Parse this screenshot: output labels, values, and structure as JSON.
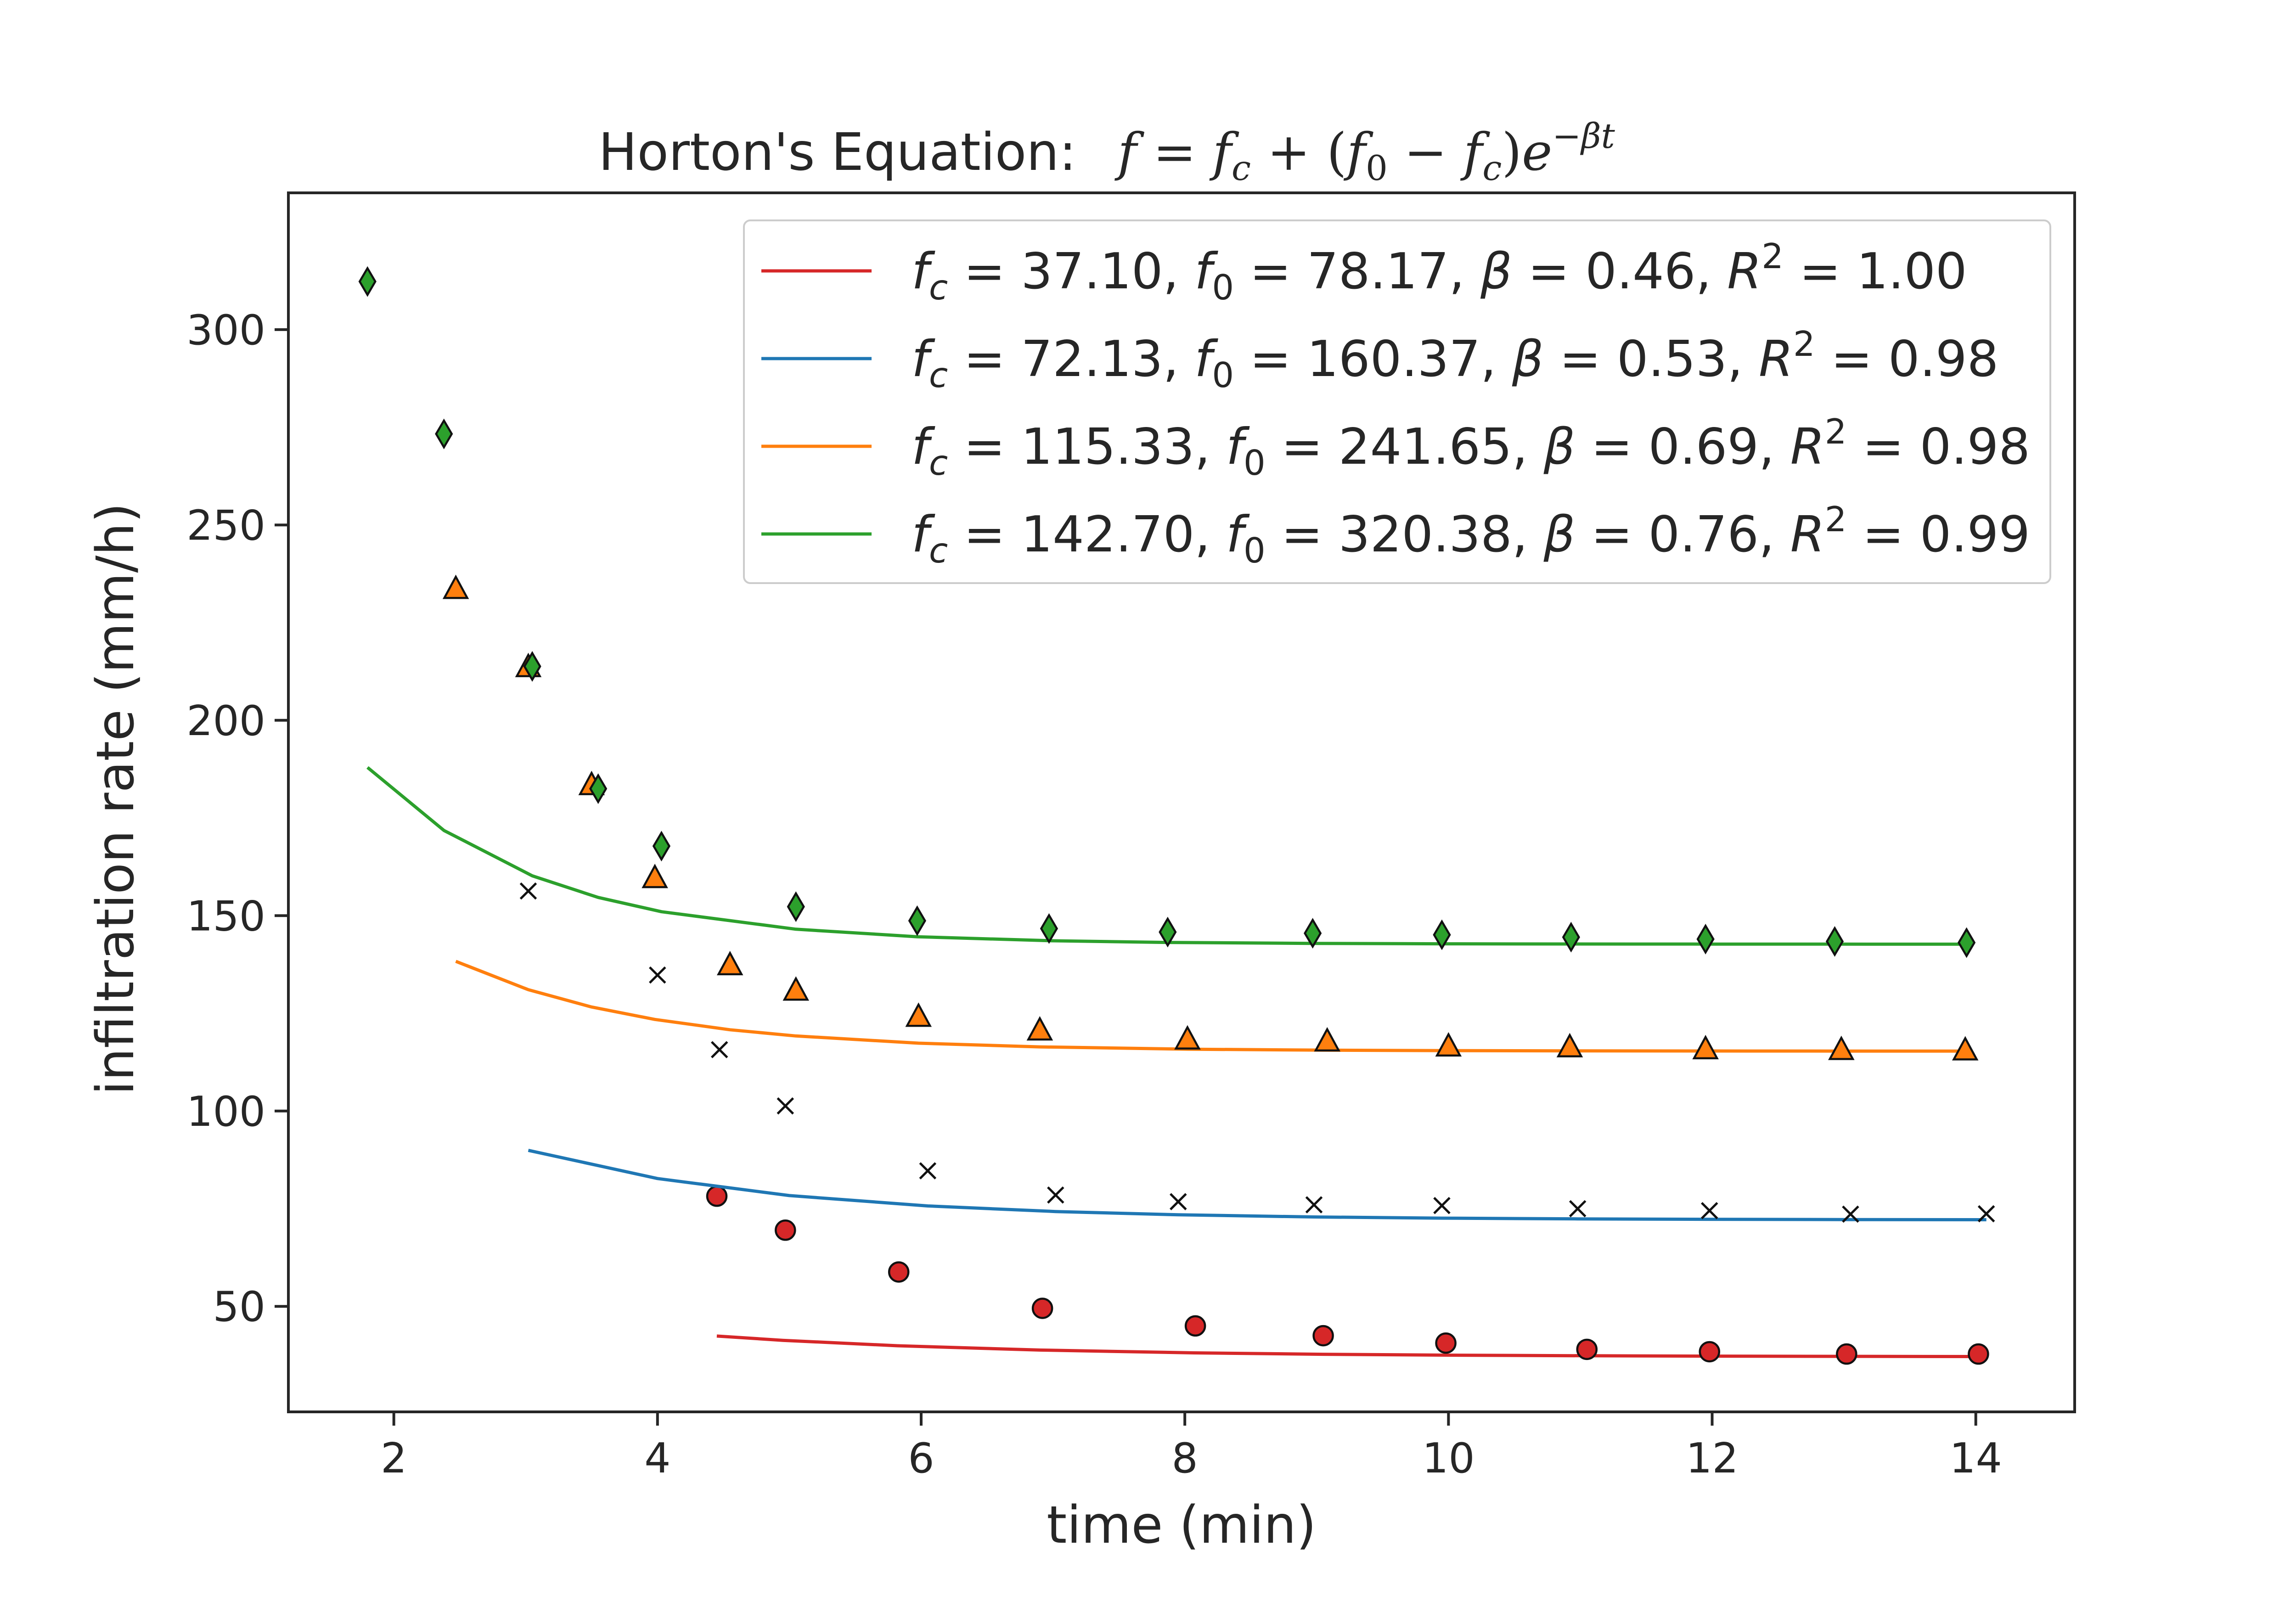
{
  "chart_data": {
    "type": "line",
    "title": "Horton's Equation:",
    "title_equation": "f = f_c + (f_0 − f_c)e^(−βt)",
    "xlabel": "time (min)",
    "ylabel": "infiltration rate (mm/h)",
    "xlim": [
      1.2,
      14.75
    ],
    "ylim": [
      23,
      335
    ],
    "xticks": [
      2,
      4,
      6,
      8,
      10,
      12,
      14
    ],
    "yticks": [
      50,
      100,
      150,
      200,
      250,
      300
    ],
    "grid": false,
    "legend_position": "top-right",
    "series": [
      {
        "legend_label": "f_c = 37.10, f_0 = 78.17, β = 0.46, R^2 = 1.00",
        "params": {
          "fc": 37.1,
          "f0": 78.17,
          "beta": 0.46,
          "r2": 1.0
        },
        "color": "#d62728",
        "marker": "circle",
        "curve_t": [
          4.45,
          4.95,
          5.82,
          6.9,
          8.07,
          9.05,
          10.0,
          11.05,
          12.0,
          13.02,
          14.02
        ],
        "observed": {
          "t": [
            4.45,
            4.97,
            5.83,
            6.92,
            8.08,
            9.05,
            9.98,
            11.05,
            11.98,
            13.02,
            14.02
          ],
          "f": [
            78.2,
            69.5,
            58.8,
            49.5,
            45.0,
            42.5,
            40.6,
            39.0,
            38.4,
            37.8,
            37.8
          ]
        }
      },
      {
        "legend_label": "f_c = 72.13, f_0 = 160.37, β = 0.53, R^2 = 0.98",
        "params": {
          "fc": 72.13,
          "f0": 160.37,
          "beta": 0.53,
          "r2": 0.98
        },
        "color": "#1f77b4",
        "marker": "x",
        "curve_t": [
          3.02,
          4.0,
          5.0,
          6.05,
          7.02,
          7.95,
          8.98,
          9.95,
          10.98,
          11.98,
          13.05,
          14.08
        ],
        "observed": {
          "t": [
            3.02,
            4.0,
            4.47,
            4.97,
            6.05,
            7.02,
            7.95,
            8.98,
            9.95,
            10.98,
            11.98,
            13.05,
            14.08
          ],
          "f": [
            156.3,
            134.8,
            115.7,
            101.3,
            84.7,
            78.5,
            76.8,
            76.0,
            75.8,
            75.0,
            74.5,
            73.6,
            73.7
          ]
        }
      },
      {
        "legend_label": "f_c = 115.33, f_0 = 241.65, β = 0.69, R^2 = 0.98",
        "params": {
          "fc": 115.33,
          "f0": 241.65,
          "beta": 0.69,
          "r2": 0.98
        },
        "color": "#ff7f0e",
        "marker": "triangle",
        "curve_t": [
          2.47,
          3.02,
          3.5,
          3.98,
          4.55,
          5.05,
          5.98,
          6.9,
          8.02,
          9.08,
          10.0,
          10.92,
          11.95,
          12.98,
          13.92
        ],
        "observed": {
          "t": [
            2.47,
            3.02,
            3.5,
            3.98,
            4.55,
            5.05,
            5.98,
            6.9,
            8.02,
            9.08,
            10.0,
            10.92,
            11.95,
            12.98,
            13.92
          ],
          "f": [
            233.8,
            213.8,
            183.6,
            159.8,
            137.5,
            131.0,
            124.3,
            120.8,
            118.5,
            118.0,
            116.7,
            116.5,
            116.0,
            115.8,
            115.7
          ]
        }
      },
      {
        "legend_label": "f_c = 142.70, f_0 = 320.38, β = 0.76, R^2 = 0.99",
        "params": {
          "fc": 142.7,
          "f0": 320.38,
          "beta": 0.76,
          "r2": 0.99
        },
        "color": "#2ca02c",
        "marker": "diamond",
        "curve_t": [
          1.8,
          2.38,
          3.05,
          3.55,
          4.03,
          5.05,
          5.97,
          6.97,
          7.87,
          8.97,
          9.95,
          10.93,
          11.95,
          12.93,
          13.93
        ],
        "observed": {
          "t": [
            1.8,
            2.38,
            3.05,
            3.55,
            4.03,
            5.05,
            5.97,
            6.97,
            7.87,
            8.97,
            9.95,
            10.93,
            11.95,
            12.93,
            13.93
          ],
          "f": [
            312.3,
            273.3,
            213.8,
            182.5,
            167.8,
            152.3,
            148.7,
            146.7,
            145.8,
            145.5,
            145.1,
            144.5,
            144.0,
            143.4,
            143.1
          ]
        }
      }
    ]
  }
}
